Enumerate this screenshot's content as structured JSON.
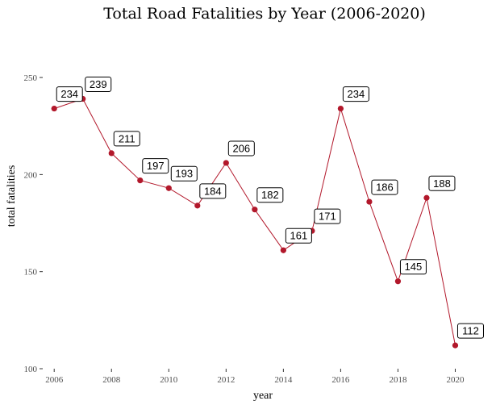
{
  "chart_data": {
    "type": "line",
    "title": "Total Road Fatalities by Year (2006-2020)",
    "xlabel": "year",
    "ylabel": "total fatalities",
    "x": [
      2006,
      2007,
      2008,
      2009,
      2010,
      2011,
      2012,
      2013,
      2014,
      2015,
      2016,
      2017,
      2018,
      2019,
      2020
    ],
    "series": [
      {
        "values": [
          234,
          239,
          211,
          197,
          193,
          184,
          206,
          182,
          161,
          171,
          234,
          186,
          145,
          188,
          112
        ]
      }
    ],
    "xlim": [
      2005.6,
      2021
    ],
    "ylim": [
      100,
      260
    ],
    "xticks": [
      2006,
      2008,
      2010,
      2012,
      2014,
      2016,
      2018,
      2020
    ],
    "yticks": [
      100,
      150,
      200,
      250
    ],
    "grid": false,
    "line_color": "#b2182b",
    "point_color": "#b2182b"
  }
}
